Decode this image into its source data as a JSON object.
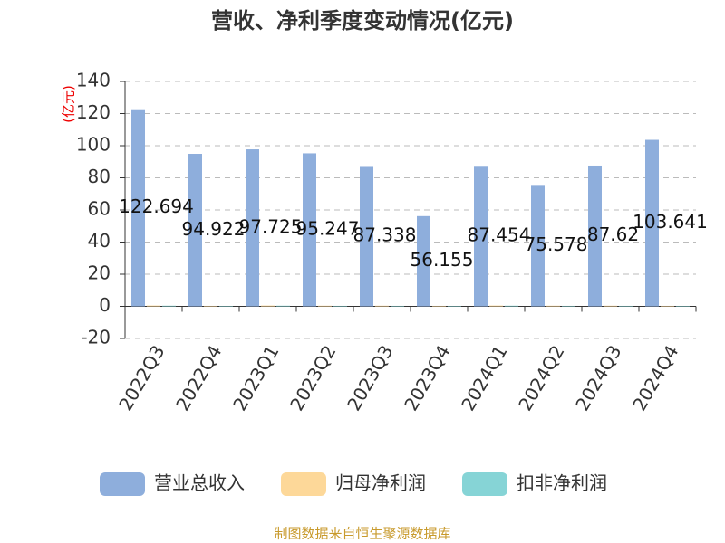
{
  "chart_data": {
    "type": "bar",
    "title": "营收、净利季度变动情况(亿元)",
    "y_label": "(亿元)",
    "categories": [
      "2022Q3",
      "2022Q4",
      "2023Q1",
      "2023Q2",
      "2023Q3",
      "2023Q4",
      "2024Q1",
      "2024Q2",
      "2024Q3",
      "2024Q4"
    ],
    "series": [
      {
        "name": "营业总收入",
        "color": "#8eaedc",
        "values": [
          122.694,
          94.922,
          97.725,
          95.247,
          87.338,
          56.155,
          87.454,
          75.578,
          87.62,
          103.641
        ],
        "show_labels": true
      },
      {
        "name": "归母净利润",
        "color": "#fdd899",
        "values": [
          0.5,
          0.3,
          0.5,
          0.4,
          0.4,
          0.3,
          0.5,
          0.4,
          0.4,
          0.3
        ]
      },
      {
        "name": "扣非净利润",
        "color": "#86d4d6",
        "values": [
          0.4,
          0.2,
          0.4,
          0.3,
          0.3,
          0.2,
          0.4,
          0.3,
          0.3,
          0.2
        ]
      }
    ],
    "ylim": [
      -20,
      140
    ],
    "yticks": [
      -20,
      0,
      20,
      40,
      60,
      80,
      100,
      120,
      140
    ],
    "grid": true,
    "source": "制图数据来自恒生聚源数据库"
  }
}
